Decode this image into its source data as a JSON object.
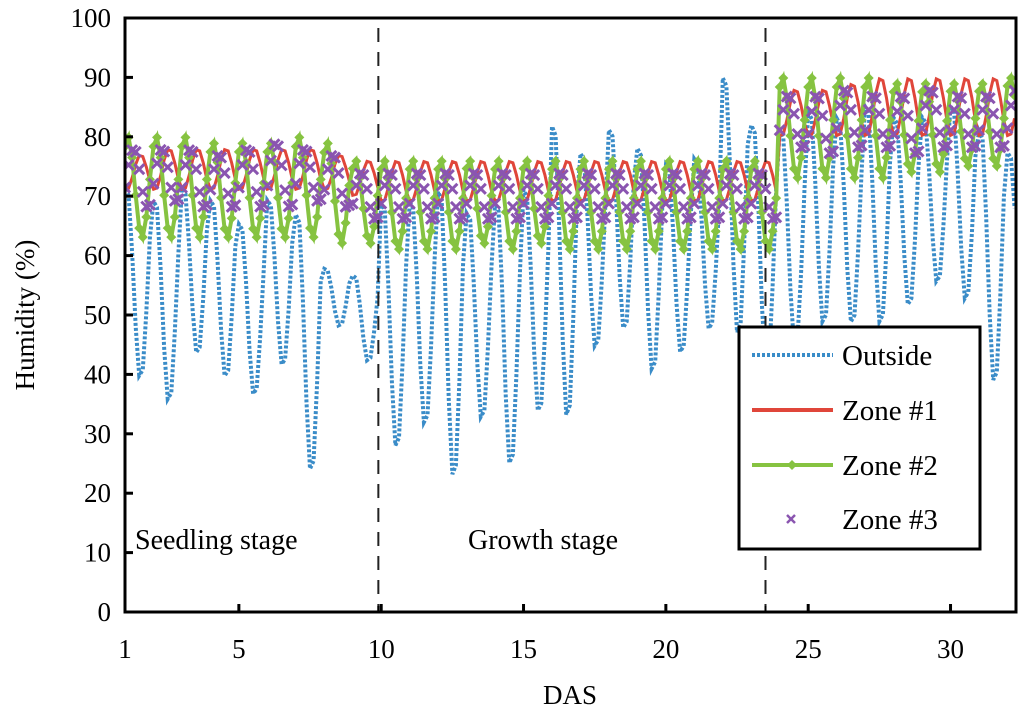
{
  "chart_data": {
    "type": "line",
    "title": "",
    "xlabel": "DAS",
    "ylabel": "Humidity (%)",
    "xlim": [
      1,
      32.3
    ],
    "ylim": [
      0,
      100
    ],
    "x_ticks": [
      1,
      5,
      10,
      15,
      20,
      25,
      30
    ],
    "y_ticks": [
      0,
      10,
      20,
      30,
      40,
      50,
      60,
      70,
      80,
      90,
      100
    ],
    "grid": false,
    "legend_position": "bottom-right",
    "samples_per_day": 8,
    "stage_dividers": [
      9.9,
      23.5
    ],
    "stage_labels": [
      {
        "text": "Seedling stage",
        "x": 1.4
      },
      {
        "text": "Growth stage",
        "x": 12.5
      }
    ],
    "days": [
      1,
      2,
      3,
      4,
      5,
      6,
      7,
      8,
      9,
      10,
      11,
      12,
      13,
      14,
      15,
      16,
      17,
      18,
      19,
      20,
      21,
      22,
      23,
      24,
      25,
      26,
      27,
      28,
      29,
      30,
      31,
      32
    ],
    "series": [
      {
        "name": "Outside",
        "color": "#3a8cc8",
        "style": "dotted",
        "daily_min": [
          39,
          35,
          43,
          39,
          36,
          41,
          23,
          48,
          42,
          27,
          31,
          22,
          32,
          24,
          33,
          32,
          44,
          47,
          40,
          43,
          47,
          46,
          40,
          44,
          48,
          48,
          48,
          51,
          55,
          52,
          38,
          49
        ],
        "daily_max": [
          72,
          70,
          72,
          70,
          66,
          70,
          68,
          58,
          57,
          70,
          70,
          72,
          68,
          70,
          72,
          83,
          78,
          82,
          79,
          76,
          77,
          91,
          83,
          82,
          85,
          84,
          86,
          84,
          84,
          86,
          82,
          78
        ]
      },
      {
        "name": "Zone #1",
        "color": "#e0463a",
        "style": "solid",
        "daily_min": [
          71,
          71,
          71,
          71,
          71,
          71,
          71,
          71,
          70,
          69,
          69,
          69,
          69,
          69,
          69,
          69,
          69,
          69,
          69,
          69,
          69,
          69,
          69,
          80,
          80,
          80,
          80,
          80,
          80,
          80,
          80,
          80
        ],
        "daily_max": [
          77,
          78,
          78,
          78,
          78,
          78,
          78,
          77,
          76,
          76,
          76,
          76,
          76,
          76,
          76,
          76,
          76,
          76,
          76,
          76,
          76,
          76,
          76,
          88,
          88,
          89,
          90,
          90,
          90,
          90,
          90,
          89
        ]
      },
      {
        "name": "Zone #2",
        "color": "#86c341",
        "style": "line-diamond",
        "daily_min": [
          63,
          63,
          63,
          63,
          63,
          63,
          63,
          62,
          62,
          61,
          61,
          61,
          62,
          61,
          62,
          61,
          61,
          61,
          61,
          61,
          61,
          61,
          61,
          73,
          73,
          73,
          73,
          74,
          74,
          75,
          75,
          75
        ],
        "daily_max": [
          80,
          80,
          80,
          79,
          79,
          79,
          80,
          79,
          76,
          76,
          76,
          76,
          76,
          76,
          76,
          76,
          76,
          76,
          76,
          76,
          76,
          76,
          76,
          90,
          90,
          90,
          90,
          89,
          89,
          89,
          89,
          90
        ]
      },
      {
        "name": "Zone #3",
        "color": "#8a55b0",
        "style": "x-marker",
        "daily_min": [
          68,
          69,
          68,
          68,
          68,
          68,
          69,
          68,
          66,
          66,
          66,
          66,
          66,
          66,
          66,
          66,
          66,
          66,
          66,
          66,
          66,
          66,
          66,
          78,
          77,
          78,
          78,
          77,
          78,
          78,
          78,
          78
        ],
        "daily_max": [
          78,
          78,
          78,
          77,
          78,
          79,
          78,
          77,
          74,
          74,
          74,
          74,
          74,
          74,
          74,
          74,
          74,
          74,
          74,
          74,
          74,
          74,
          74,
          87,
          87,
          88,
          87,
          87,
          88,
          87,
          87,
          88
        ]
      }
    ]
  },
  "legend": {
    "items": [
      "Outside",
      "Zone #1",
      "Zone #2",
      "Zone #3"
    ]
  },
  "axes": {
    "x_title": "DAS",
    "y_title": "Humidity (%)",
    "x_tick_labels": [
      "1",
      "5",
      "10",
      "15",
      "20",
      "25",
      "30"
    ],
    "y_tick_labels": [
      "0",
      "10",
      "20",
      "30",
      "40",
      "50",
      "60",
      "70",
      "80",
      "90",
      "100"
    ]
  }
}
